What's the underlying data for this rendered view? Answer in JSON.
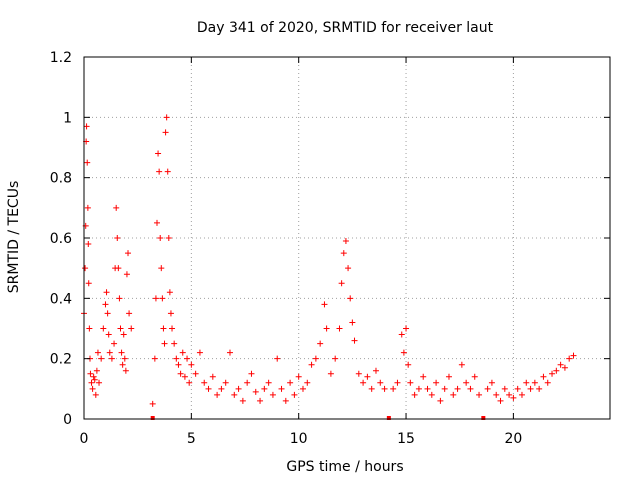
{
  "chart_data": {
    "type": "scatter",
    "title": "Day 341 of 2020, SRMTID for receiver laut",
    "xlabel": "GPS time / hours",
    "ylabel": "SRMTID / TECUs",
    "xlim": [
      0,
      24.5
    ],
    "ylim": [
      0,
      1.2
    ],
    "x_ticks": [
      0,
      5,
      10,
      15,
      20
    ],
    "y_ticks": [
      0,
      0.2,
      0.4,
      0.6,
      0.8,
      1,
      1.2
    ],
    "x_tick_labels": [
      "0",
      "5",
      "10",
      "15",
      "20"
    ],
    "y_tick_labels": [
      "0",
      "0.2",
      "0.4",
      "0.6",
      "0.8",
      "1",
      "1.2"
    ],
    "grid": true,
    "marker": "+",
    "color": "#ff0000",
    "gap_markers_x": [
      3.2,
      14.2,
      18.6
    ],
    "series": [
      {
        "name": "SRMTID",
        "points": [
          [
            0.0,
            0.35
          ],
          [
            0.05,
            0.5
          ],
          [
            0.08,
            0.64
          ],
          [
            0.1,
            0.92
          ],
          [
            0.12,
            0.97
          ],
          [
            0.15,
            0.85
          ],
          [
            0.18,
            0.7
          ],
          [
            0.2,
            0.58
          ],
          [
            0.22,
            0.45
          ],
          [
            0.25,
            0.3
          ],
          [
            0.28,
            0.2
          ],
          [
            0.3,
            0.15
          ],
          [
            0.35,
            0.12
          ],
          [
            0.4,
            0.1
          ],
          [
            0.45,
            0.14
          ],
          [
            0.5,
            0.13
          ],
          [
            0.55,
            0.08
          ],
          [
            0.6,
            0.16
          ],
          [
            0.65,
            0.22
          ],
          [
            0.7,
            0.12
          ],
          [
            0.8,
            0.2
          ],
          [
            0.9,
            0.3
          ],
          [
            1.0,
            0.38
          ],
          [
            1.05,
            0.42
          ],
          [
            1.1,
            0.35
          ],
          [
            1.15,
            0.28
          ],
          [
            1.2,
            0.22
          ],
          [
            1.3,
            0.2
          ],
          [
            1.4,
            0.25
          ],
          [
            1.45,
            0.5
          ],
          [
            1.5,
            0.7
          ],
          [
            1.55,
            0.6
          ],
          [
            1.6,
            0.5
          ],
          [
            1.65,
            0.4
          ],
          [
            1.7,
            0.3
          ],
          [
            1.75,
            0.22
          ],
          [
            1.8,
            0.18
          ],
          [
            1.85,
            0.28
          ],
          [
            1.9,
            0.2
          ],
          [
            1.95,
            0.16
          ],
          [
            2.0,
            0.48
          ],
          [
            2.05,
            0.55
          ],
          [
            2.1,
            0.35
          ],
          [
            2.2,
            0.3
          ],
          [
            3.2,
            0.05
          ],
          [
            3.3,
            0.2
          ],
          [
            3.35,
            0.4
          ],
          [
            3.4,
            0.65
          ],
          [
            3.45,
            0.88
          ],
          [
            3.5,
            0.82
          ],
          [
            3.55,
            0.6
          ],
          [
            3.6,
            0.5
          ],
          [
            3.65,
            0.4
          ],
          [
            3.7,
            0.3
          ],
          [
            3.75,
            0.25
          ],
          [
            3.8,
            0.95
          ],
          [
            3.85,
            1.0
          ],
          [
            3.9,
            0.82
          ],
          [
            3.95,
            0.6
          ],
          [
            4.0,
            0.42
          ],
          [
            4.05,
            0.35
          ],
          [
            4.1,
            0.3
          ],
          [
            4.2,
            0.25
          ],
          [
            4.3,
            0.2
          ],
          [
            4.4,
            0.18
          ],
          [
            4.5,
            0.15
          ],
          [
            4.6,
            0.22
          ],
          [
            4.7,
            0.14
          ],
          [
            4.8,
            0.2
          ],
          [
            4.9,
            0.12
          ],
          [
            5.0,
            0.18
          ],
          [
            5.2,
            0.15
          ],
          [
            5.4,
            0.22
          ],
          [
            5.6,
            0.12
          ],
          [
            5.8,
            0.1
          ],
          [
            6.0,
            0.14
          ],
          [
            6.2,
            0.08
          ],
          [
            6.4,
            0.1
          ],
          [
            6.6,
            0.12
          ],
          [
            6.8,
            0.22
          ],
          [
            7.0,
            0.08
          ],
          [
            7.2,
            0.1
          ],
          [
            7.4,
            0.06
          ],
          [
            7.6,
            0.12
          ],
          [
            7.8,
            0.15
          ],
          [
            8.0,
            0.09
          ],
          [
            8.2,
            0.06
          ],
          [
            8.4,
            0.1
          ],
          [
            8.6,
            0.12
          ],
          [
            8.8,
            0.08
          ],
          [
            9.0,
            0.2
          ],
          [
            9.2,
            0.1
          ],
          [
            9.4,
            0.06
          ],
          [
            9.6,
            0.12
          ],
          [
            9.8,
            0.08
          ],
          [
            10.0,
            0.14
          ],
          [
            10.2,
            0.1
          ],
          [
            10.4,
            0.12
          ],
          [
            10.6,
            0.18
          ],
          [
            10.8,
            0.2
          ],
          [
            11.0,
            0.25
          ],
          [
            11.2,
            0.38
          ],
          [
            11.3,
            0.3
          ],
          [
            11.5,
            0.15
          ],
          [
            11.7,
            0.2
          ],
          [
            11.9,
            0.3
          ],
          [
            12.0,
            0.45
          ],
          [
            12.1,
            0.55
          ],
          [
            12.2,
            0.59
          ],
          [
            12.3,
            0.5
          ],
          [
            12.4,
            0.4
          ],
          [
            12.5,
            0.32
          ],
          [
            12.6,
            0.26
          ],
          [
            12.8,
            0.15
          ],
          [
            13.0,
            0.12
          ],
          [
            13.2,
            0.14
          ],
          [
            13.4,
            0.1
          ],
          [
            13.6,
            0.16
          ],
          [
            13.8,
            0.12
          ],
          [
            14.0,
            0.1
          ],
          [
            14.4,
            0.1
          ],
          [
            14.6,
            0.12
          ],
          [
            14.8,
            0.28
          ],
          [
            14.9,
            0.22
          ],
          [
            15.0,
            0.3
          ],
          [
            15.1,
            0.18
          ],
          [
            15.2,
            0.12
          ],
          [
            15.4,
            0.08
          ],
          [
            15.6,
            0.1
          ],
          [
            15.8,
            0.14
          ],
          [
            16.0,
            0.1
          ],
          [
            16.2,
            0.08
          ],
          [
            16.4,
            0.12
          ],
          [
            16.6,
            0.06
          ],
          [
            16.8,
            0.1
          ],
          [
            17.0,
            0.14
          ],
          [
            17.2,
            0.08
          ],
          [
            17.4,
            0.1
          ],
          [
            17.6,
            0.18
          ],
          [
            17.8,
            0.12
          ],
          [
            18.0,
            0.1
          ],
          [
            18.2,
            0.14
          ],
          [
            18.4,
            0.08
          ],
          [
            18.8,
            0.1
          ],
          [
            19.0,
            0.12
          ],
          [
            19.2,
            0.08
          ],
          [
            19.4,
            0.06
          ],
          [
            19.6,
            0.1
          ],
          [
            19.8,
            0.08
          ],
          [
            20.0,
            0.07
          ],
          [
            20.2,
            0.1
          ],
          [
            20.4,
            0.08
          ],
          [
            20.6,
            0.12
          ],
          [
            20.8,
            0.1
          ],
          [
            21.0,
            0.12
          ],
          [
            21.2,
            0.1
          ],
          [
            21.4,
            0.14
          ],
          [
            21.6,
            0.12
          ],
          [
            21.8,
            0.15
          ],
          [
            22.0,
            0.16
          ],
          [
            22.2,
            0.18
          ],
          [
            22.4,
            0.17
          ],
          [
            22.6,
            0.2
          ],
          [
            22.8,
            0.21
          ]
        ]
      }
    ]
  }
}
